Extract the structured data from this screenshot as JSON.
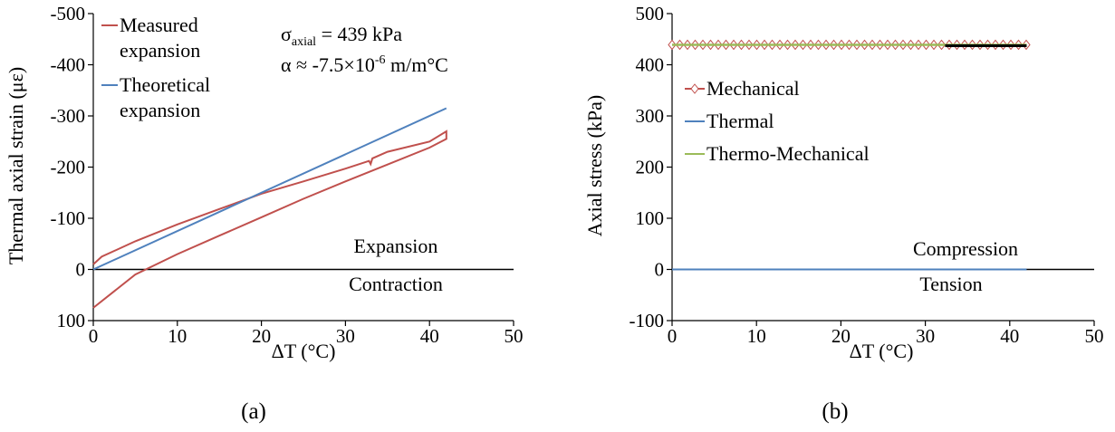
{
  "chart_data": [
    {
      "type": "line",
      "panel_label": "(a)",
      "xlabel": "ΔT (°C)",
      "ylabel": "Thermal axial strain (με)",
      "xlim": [
        0,
        50
      ],
      "ylim": [
        -500,
        100
      ],
      "y_inverted": true,
      "xticks": [
        "0",
        "10",
        "20",
        "30",
        "40",
        "50"
      ],
      "yticks": [
        "-500",
        "-400",
        "-300",
        "-200",
        "-100",
        "0",
        "100"
      ],
      "grid": false,
      "legend_position": "top-left",
      "annotation": {
        "sigma_symbol": "σ",
        "sigma_subscript": "axial",
        "sigma_value": " = 439 kPa",
        "alpha_text": "α ≈ -7.5×10",
        "alpha_exponent": "-6",
        "alpha_units": " m/m°C"
      },
      "region_labels": {
        "above": "Expansion",
        "below": "Contraction"
      },
      "series": [
        {
          "name": "Measured expansion",
          "legend_lines": [
            "Measured",
            "expansion"
          ],
          "color": "#c0504d",
          "heating_branch": {
            "x": [
              0,
              1,
              5,
              10,
              15,
              20,
              25,
              30,
              32.8,
              33,
              33.2,
              35,
              40,
              42
            ],
            "y": [
              -10,
              -25,
              -55,
              -88,
              -118,
              -148,
              -172,
              -197,
              -212,
              -206,
              -217,
              -230,
              -250,
              -270
            ]
          },
          "cooling_branch": {
            "x": [
              42,
              40,
              35,
              30,
              25,
              20,
              15,
              10,
              5,
              0
            ],
            "y": [
              -255,
              -238,
              -205,
              -172,
              -138,
              -102,
              -66,
              -30,
              10,
              75
            ]
          }
        },
        {
          "name": "Theoretical expansion",
          "legend_lines": [
            "Theoretical",
            "expansion"
          ],
          "color": "#4f81bd",
          "x": [
            0,
            42
          ],
          "y": [
            0,
            -315
          ]
        }
      ]
    },
    {
      "type": "line",
      "panel_label": "(b)",
      "xlabel": "ΔT (°C)",
      "ylabel": "Axial stress (kPa)",
      "xlim": [
        0,
        50
      ],
      "ylim": [
        -100,
        500
      ],
      "xticks": [
        "0",
        "10",
        "20",
        "30",
        "40",
        "50"
      ],
      "yticks": [
        "-100",
        "0",
        "100",
        "200",
        "300",
        "400",
        "500"
      ],
      "grid": false,
      "legend_position": "middle-left",
      "region_labels": {
        "above": "Compression",
        "below": "Tension"
      },
      "series": [
        {
          "name": "Mechanical",
          "color": "#c0504d",
          "marker": "diamond",
          "x_start": 0,
          "x_end": 42,
          "value": 439
        },
        {
          "name": "Thermal",
          "color": "#4f81bd",
          "x_start": 0,
          "x_end": 42,
          "value": 0
        },
        {
          "name": "Thermo-Mechanical",
          "color": "#9bbb59",
          "x_start": 0,
          "x_end": 42,
          "value": 439
        }
      ]
    }
  ]
}
